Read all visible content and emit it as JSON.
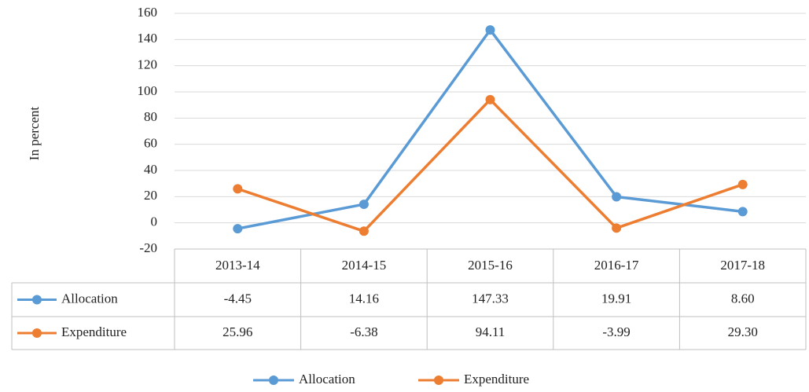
{
  "chart_data": {
    "type": "line",
    "y_label": "In percent",
    "categories": [
      "2013-14",
      "2014-15",
      "2015-16",
      "2016-17",
      "2017-18"
    ],
    "series": [
      {
        "name": "Allocation",
        "color": "#5b9bd5",
        "values": [
          -4.45,
          14.16,
          147.33,
          19.91,
          8.6
        ],
        "value_labels": [
          "-4.45",
          "14.16",
          "147.33",
          "19.91",
          "8.60"
        ]
      },
      {
        "name": "Expenditure",
        "color": "#ed7d31",
        "values": [
          25.96,
          -6.38,
          94.11,
          -3.99,
          29.3
        ],
        "value_labels": [
          "25.96",
          "-6.38",
          "94.11",
          "-3.99",
          "29.30"
        ]
      }
    ],
    "ylim": [
      -20,
      160
    ],
    "yticks": [
      -20,
      0,
      20,
      40,
      60,
      80,
      100,
      120,
      140,
      160
    ],
    "grid": true,
    "legend": "bottom"
  }
}
